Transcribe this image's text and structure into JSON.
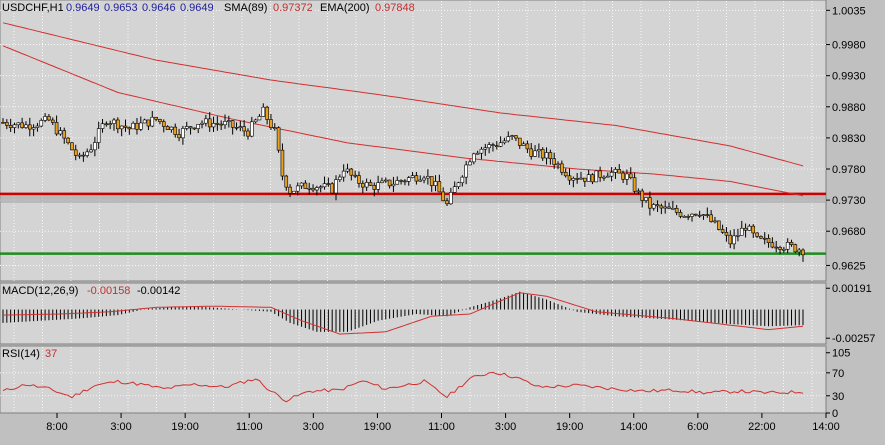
{
  "header": {
    "symbol": "USDCHF,H1",
    "ohlc": [
      "0.9649",
      "0.9653",
      "0.9646",
      "0.9649"
    ],
    "sma_label": "SMA(89)",
    "sma_value": "0.97372",
    "ema_label": "EMA(200)",
    "ema_value": "0.97848"
  },
  "colors": {
    "background": "#c0c0c0",
    "plot_bg": "#d4d4d4",
    "grid": "#ffffff",
    "candle_up": "#ffffff",
    "candle_down": "#e8a020",
    "candle_wick": "#000000",
    "ma_line": "#d23030",
    "resistance": "#cc0000",
    "support": "#1e8c1e",
    "header_blue": "#2020a0",
    "header_red": "#c03030"
  },
  "chart_data": [
    {
      "type": "candlestick",
      "name": "price",
      "ylim": [
        0.96,
        1.005
      ],
      "y_ticks": [
        "1.0035",
        "0.9980",
        "0.9930",
        "0.9880",
        "0.9830",
        "0.9780",
        "0.9730",
        "0.9680",
        "0.9625"
      ],
      "y_tick_values": [
        1.0035,
        0.998,
        0.993,
        0.988,
        0.983,
        0.978,
        0.973,
        0.968,
        0.9625
      ],
      "x_ticks": [
        "8:00",
        "3:00",
        "19:00",
        "11:00",
        "3:00",
        "19:00",
        "11:00",
        "3:00",
        "19:00",
        "14:00",
        "6:00",
        "22:00",
        "14:00"
      ],
      "close_anchors": [
        [
          0,
          0.9855
        ],
        [
          6,
          0.985
        ],
        [
          12,
          0.9858
        ],
        [
          16,
          0.9828
        ],
        [
          20,
          0.9795
        ],
        [
          23,
          0.9815
        ],
        [
          27,
          0.986
        ],
        [
          33,
          0.9845
        ],
        [
          40,
          0.986
        ],
        [
          46,
          0.9838
        ],
        [
          51,
          0.9855
        ],
        [
          58,
          0.9852
        ],
        [
          64,
          0.984
        ],
        [
          68,
          0.9872
        ],
        [
          71,
          0.984
        ],
        [
          73,
          0.977
        ],
        [
          75,
          0.9745
        ],
        [
          80,
          0.9755
        ],
        [
          86,
          0.9748
        ],
        [
          89,
          0.9782
        ],
        [
          92,
          0.9762
        ],
        [
          96,
          0.9752
        ],
        [
          102,
          0.9758
        ],
        [
          110,
          0.9772
        ],
        [
          113,
          0.9752
        ],
        [
          116,
          0.9722
        ],
        [
          119,
          0.9762
        ],
        [
          123,
          0.981
        ],
        [
          128,
          0.9818
        ],
        [
          133,
          0.983
        ],
        [
          138,
          0.9808
        ],
        [
          143,
          0.9798
        ],
        [
          148,
          0.977
        ],
        [
          153,
          0.9765
        ],
        [
          158,
          0.9775
        ],
        [
          163,
          0.9768
        ],
        [
          166,
          0.974
        ],
        [
          169,
          0.972
        ],
        [
          173,
          0.9715
        ],
        [
          178,
          0.9708
        ],
        [
          182,
          0.9712
        ],
        [
          186,
          0.969
        ],
        [
          190,
          0.9662
        ],
        [
          194,
          0.9688
        ],
        [
          197,
          0.9665
        ],
        [
          202,
          0.966
        ],
        [
          209,
          0.965
        ]
      ],
      "sma_89": [
        [
          0,
          0.9978
        ],
        [
          30,
          0.9903
        ],
        [
          60,
          0.986
        ],
        [
          90,
          0.9822
        ],
        [
          120,
          0.9798
        ],
        [
          150,
          0.978
        ],
        [
          170,
          0.9772
        ],
        [
          190,
          0.976
        ],
        [
          209,
          0.9737
        ]
      ],
      "ema_200": [
        [
          0,
          1.0015
        ],
        [
          40,
          0.9955
        ],
        [
          70,
          0.9923
        ],
        [
          100,
          0.9898
        ],
        [
          130,
          0.987
        ],
        [
          160,
          0.985
        ],
        [
          190,
          0.9817
        ],
        [
          209,
          0.9785
        ]
      ],
      "levels": [
        {
          "name": "resistance",
          "value": 0.974
        },
        {
          "name": "support",
          "value": 0.9644
        }
      ]
    },
    {
      "type": "histogram",
      "name": "macd",
      "label": "MACD(12,26,9)",
      "values_text": [
        "-0.00158",
        "-0.00142"
      ],
      "ylim": [
        -0.003,
        0.0022
      ],
      "y_ticks": [
        "0.00191",
        "-0.00257"
      ],
      "y_tick_values": [
        0.00191,
        -0.00257
      ],
      "signal_anchors": [
        [
          0,
          -0.0005
        ],
        [
          15,
          -0.0004
        ],
        [
          28,
          -0.0002
        ],
        [
          40,
          0.0002
        ],
        [
          55,
          0.0003
        ],
        [
          70,
          0.0002
        ],
        [
          78,
          -0.001
        ],
        [
          88,
          -0.0022
        ],
        [
          100,
          -0.002
        ],
        [
          112,
          -0.0006
        ],
        [
          122,
          -0.0004
        ],
        [
          135,
          0.0015
        ],
        [
          142,
          0.0012
        ],
        [
          155,
          -0.0002
        ],
        [
          175,
          -0.0008
        ],
        [
          190,
          -0.0014
        ],
        [
          200,
          -0.0018
        ],
        [
          209,
          -0.0015
        ]
      ],
      "hist_anchors": [
        [
          0,
          -0.0012
        ],
        [
          20,
          -0.0008
        ],
        [
          30,
          -0.0005
        ],
        [
          38,
          0.0001
        ],
        [
          50,
          0.0003
        ],
        [
          62,
          0.0
        ],
        [
          70,
          -0.0002
        ],
        [
          75,
          -0.0012
        ],
        [
          82,
          -0.002
        ],
        [
          90,
          -0.002
        ],
        [
          98,
          -0.001
        ],
        [
          108,
          -0.0004
        ],
        [
          116,
          -0.0006
        ],
        [
          122,
          0.0002
        ],
        [
          130,
          0.001
        ],
        [
          135,
          0.0016
        ],
        [
          142,
          0.0009
        ],
        [
          150,
          -0.0002
        ],
        [
          160,
          -0.0006
        ],
        [
          175,
          -0.0009
        ],
        [
          190,
          -0.0013
        ],
        [
          200,
          -0.0015
        ],
        [
          209,
          -0.0014
        ]
      ]
    },
    {
      "type": "line",
      "name": "rsi",
      "label": "RSI(14)",
      "value_text": "37",
      "ylim": [
        0,
        115
      ],
      "y_ticks": [
        "105",
        "70",
        "30",
        "0"
      ],
      "y_tick_values": [
        105,
        70,
        30,
        0
      ],
      "anchors": [
        [
          0,
          38
        ],
        [
          6,
          50
        ],
        [
          12,
          42
        ],
        [
          18,
          28
        ],
        [
          24,
          48
        ],
        [
          30,
          55
        ],
        [
          36,
          50
        ],
        [
          42,
          42
        ],
        [
          50,
          50
        ],
        [
          58,
          45
        ],
        [
          66,
          60
        ],
        [
          70,
          38
        ],
        [
          74,
          22
        ],
        [
          80,
          38
        ],
        [
          88,
          40
        ],
        [
          94,
          56
        ],
        [
          100,
          42
        ],
        [
          110,
          55
        ],
        [
          116,
          28
        ],
        [
          122,
          60
        ],
        [
          128,
          72
        ],
        [
          134,
          62
        ],
        [
          140,
          45
        ],
        [
          150,
          48
        ],
        [
          160,
          42
        ],
        [
          168,
          38
        ],
        [
          176,
          40
        ],
        [
          184,
          35
        ],
        [
          192,
          38
        ],
        [
          200,
          35
        ],
        [
          209,
          37
        ]
      ]
    }
  ]
}
